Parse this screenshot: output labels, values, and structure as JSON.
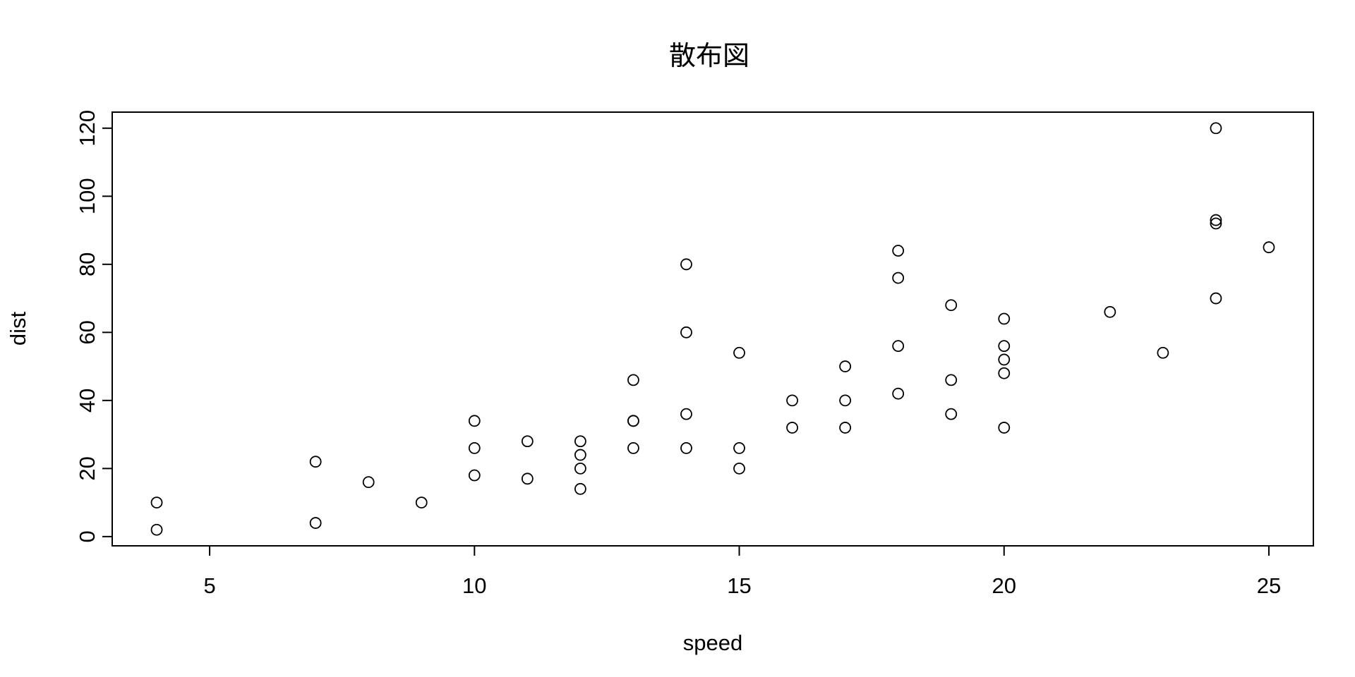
{
  "chart_data": {
    "type": "scatter",
    "title": "散布図",
    "xlabel": "speed",
    "ylabel": "dist",
    "xlim": [
      3.16,
      25.84
    ],
    "ylim": [
      -2.72,
      124.72
    ],
    "x_ticks": [
      5,
      10,
      15,
      20,
      25
    ],
    "y_ticks": [
      0,
      20,
      40,
      60,
      80,
      100,
      120
    ],
    "grid": false,
    "marker": "open-circle",
    "points": [
      [
        4,
        2
      ],
      [
        4,
        10
      ],
      [
        7,
        4
      ],
      [
        7,
        22
      ],
      [
        8,
        16
      ],
      [
        9,
        10
      ],
      [
        10,
        18
      ],
      [
        10,
        26
      ],
      [
        10,
        34
      ],
      [
        11,
        17
      ],
      [
        11,
        28
      ],
      [
        12,
        14
      ],
      [
        12,
        20
      ],
      [
        12,
        24
      ],
      [
        12,
        28
      ],
      [
        13,
        26
      ],
      [
        13,
        34
      ],
      [
        13,
        34
      ],
      [
        13,
        46
      ],
      [
        14,
        26
      ],
      [
        14,
        36
      ],
      [
        14,
        60
      ],
      [
        14,
        80
      ],
      [
        15,
        20
      ],
      [
        15,
        26
      ],
      [
        15,
        54
      ],
      [
        16,
        32
      ],
      [
        16,
        40
      ],
      [
        17,
        32
      ],
      [
        17,
        40
      ],
      [
        17,
        50
      ],
      [
        18,
        42
      ],
      [
        18,
        56
      ],
      [
        18,
        76
      ],
      [
        18,
        84
      ],
      [
        19,
        36
      ],
      [
        19,
        46
      ],
      [
        19,
        68
      ],
      [
        20,
        32
      ],
      [
        20,
        48
      ],
      [
        20,
        52
      ],
      [
        20,
        56
      ],
      [
        20,
        64
      ],
      [
        22,
        66
      ],
      [
        23,
        54
      ],
      [
        24,
        70
      ],
      [
        24,
        92
      ],
      [
        24,
        93
      ],
      [
        24,
        120
      ],
      [
        25,
        85
      ]
    ]
  }
}
